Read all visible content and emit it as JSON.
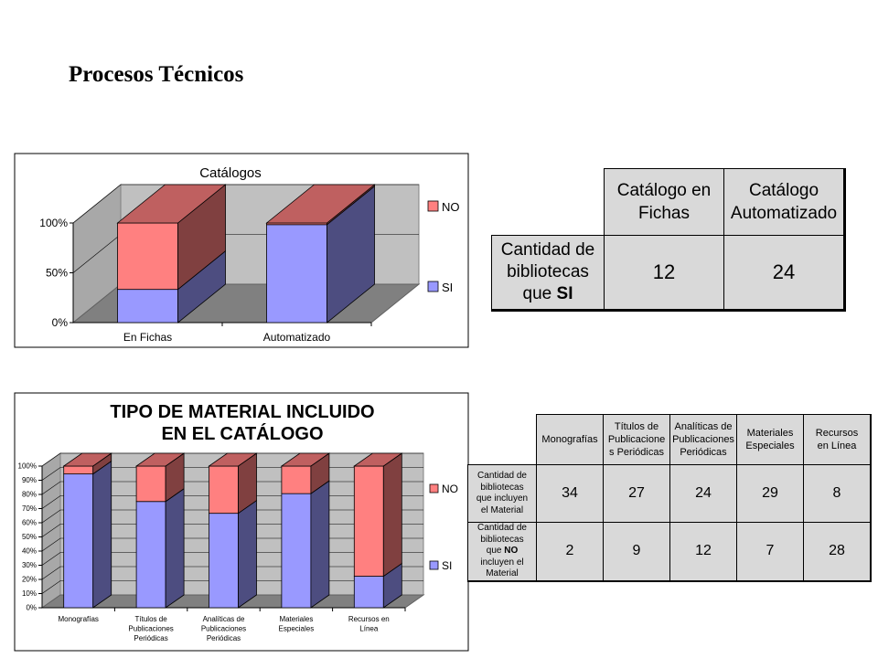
{
  "page_title": "Procesos Técnicos",
  "chart_data": [
    {
      "type": "bar",
      "stacked": true,
      "percent_stacked": true,
      "title": "Catálogos",
      "categories": [
        "En Fichas",
        "Automatizado"
      ],
      "series": [
        {
          "name": "SI",
          "values": [
            12,
            24
          ],
          "color": "#9999ff"
        },
        {
          "name": "NO",
          "values": [
            24,
            0.4
          ],
          "color": "#ff8080"
        }
      ],
      "yticks": [
        "0%",
        "50%",
        "100%"
      ],
      "ylim": [
        0,
        100
      ],
      "legend": "right"
    },
    {
      "type": "bar",
      "stacked": true,
      "percent_stacked": true,
      "title": "TIPO DE MATERIAL INCLUIDO EN EL CATÁLOGO",
      "title_lines": [
        "TIPO DE MATERIAL INCLUIDO",
        "EN EL CATÁLOGO"
      ],
      "categories": [
        [
          "Monografías"
        ],
        [
          "Títulos de",
          "Publicaciones",
          "Periódicas"
        ],
        [
          "Analíticas de",
          "Publicaciones",
          "Periódicas"
        ],
        [
          "Materiales",
          "Especiales"
        ],
        [
          "Recursos en",
          "Línea"
        ]
      ],
      "series": [
        {
          "name": "SI",
          "values": [
            34,
            27,
            24,
            29,
            8
          ],
          "color": "#9999ff"
        },
        {
          "name": "NO",
          "values": [
            2,
            9,
            12,
            7,
            28
          ],
          "color": "#ff8080"
        }
      ],
      "yticks": [
        "0%",
        "10%",
        "20%",
        "30%",
        "40%",
        "50%",
        "60%",
        "70%",
        "80%",
        "90%",
        "100%"
      ],
      "ylim": [
        0,
        100
      ],
      "legend": "right"
    }
  ],
  "table1": {
    "headers": [
      [
        "Catálogo en",
        "Fichas"
      ],
      [
        "Catálogo",
        "Automatizado"
      ]
    ],
    "row_label": {
      "lines": [
        "Cantidad de",
        "bibliotecas"
      ],
      "last_pre": "que ",
      "last_bold": "SI"
    },
    "values": [
      "12",
      "24"
    ]
  },
  "table2": {
    "headers": [
      [
        "Monografías"
      ],
      [
        "Títulos de",
        "Publicacione",
        "s Periódicas"
      ],
      [
        "Analíticas de",
        "Publicaciones",
        "Periódicas"
      ],
      [
        "Materiales",
        "Especiales"
      ],
      [
        "Recursos",
        "en Línea"
      ]
    ],
    "rows": [
      {
        "label_lines": [
          "Cantidad de",
          "bibliotecas",
          "que incluyen",
          "el Material"
        ],
        "values": [
          "34",
          "27",
          "24",
          "29",
          "8"
        ]
      },
      {
        "label_lines": [
          "Cantidad de",
          "bibliotecas"
        ],
        "label_pre": "que ",
        "label_bold": "NO",
        "label_post_lines": [
          "incluyen el",
          "Material"
        ],
        "values": [
          "2",
          "9",
          "12",
          "7",
          "28"
        ]
      }
    ]
  }
}
